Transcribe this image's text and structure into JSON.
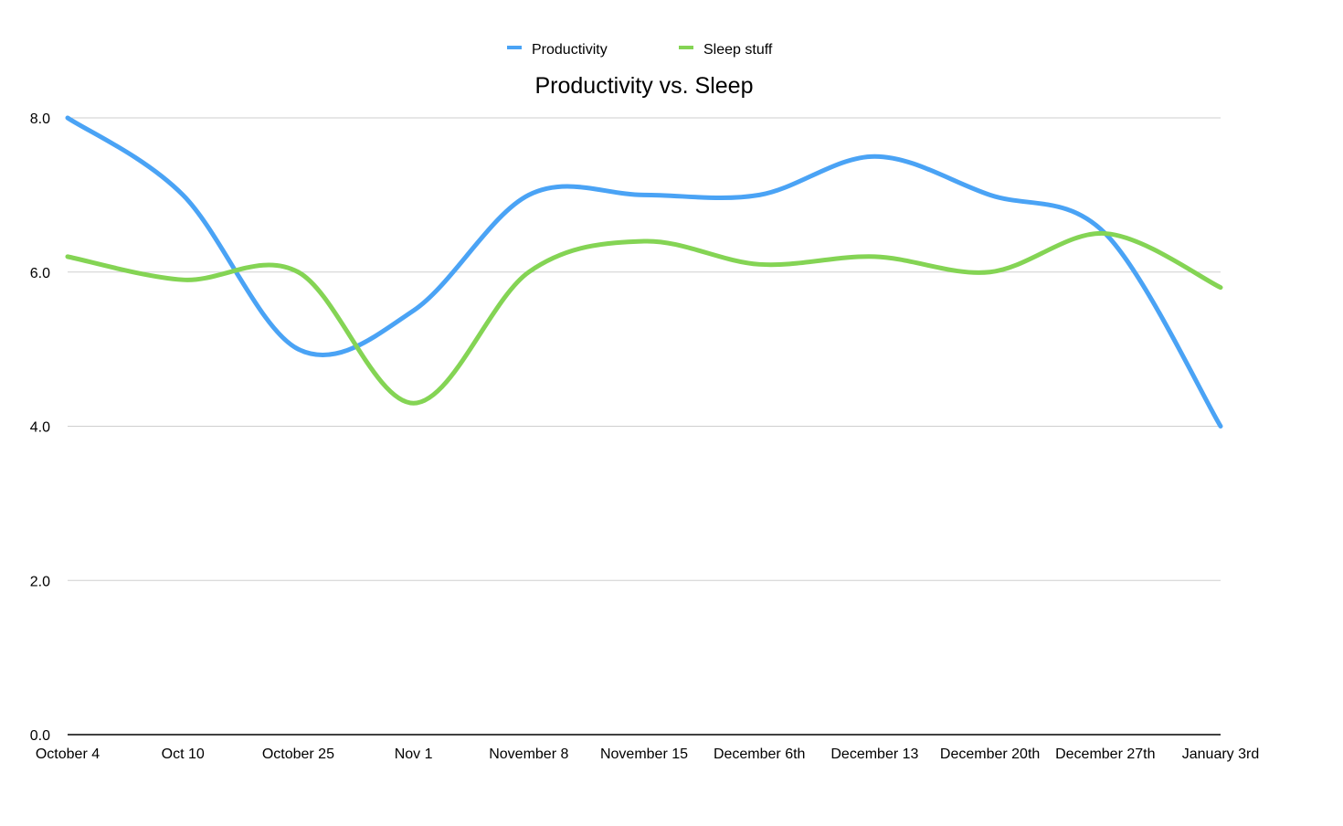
{
  "chart_data": {
    "type": "line",
    "title": "Productivity vs. Sleep",
    "xlabel": "",
    "ylabel": "",
    "categories": [
      "October 4",
      "Oct 10",
      "October 25",
      "Nov 1",
      "November 8",
      "November 15",
      "December 6th",
      "December 13",
      "December 20th",
      "December 27th",
      "January 3rd"
    ],
    "series": [
      {
        "name": "Productivity",
        "color": "#4aa3f5",
        "values": [
          8.0,
          7.0,
          5.0,
          5.5,
          7.0,
          7.0,
          7.0,
          7.5,
          7.0,
          6.5,
          4.0
        ]
      },
      {
        "name": "Sleep stuff",
        "color": "#84d454",
        "values": [
          6.2,
          5.9,
          6.0,
          4.3,
          6.0,
          6.4,
          6.1,
          6.2,
          6.0,
          6.5,
          5.8
        ]
      }
    ],
    "ylim": [
      0,
      8
    ],
    "yticks": [
      "0.0",
      "2.0",
      "4.0",
      "6.0",
      "8.0"
    ],
    "grid": true,
    "smooth": true,
    "legend_position": "top"
  }
}
